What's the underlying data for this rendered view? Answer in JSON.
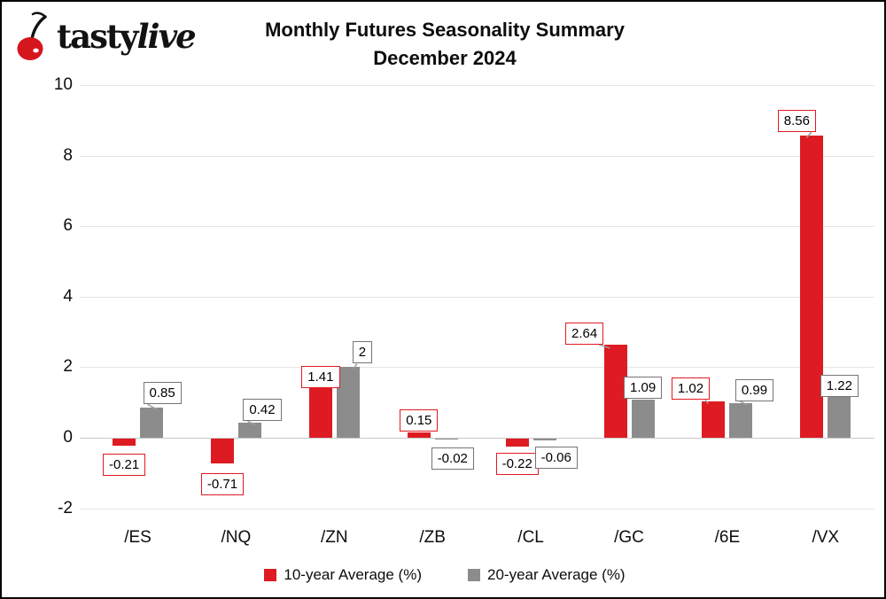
{
  "logo": {
    "tasty": "tasty",
    "live": "live"
  },
  "title": {
    "line1": "Monthly Futures Seasonality Summary",
    "line2": "December 2024"
  },
  "chart_data": {
    "type": "bar",
    "categories": [
      "/ES",
      "/NQ",
      "/ZN",
      "/ZB",
      "/CL",
      "/GC",
      "/6E",
      "/VX"
    ],
    "series": [
      {
        "name": "10-year Average (%)",
        "color": "#de1b22",
        "values": [
          -0.21,
          -0.71,
          1.41,
          0.15,
          -0.22,
          2.64,
          1.02,
          8.56
        ],
        "labels": [
          "-0.21",
          "-0.71",
          "1.41",
          "0.15",
          "-0.22",
          "2.64",
          "1.02",
          "8.56"
        ]
      },
      {
        "name": "20-year Average (%)",
        "color": "#8c8c8c",
        "values": [
          0.85,
          0.42,
          2,
          -0.02,
          -0.06,
          1.09,
          0.99,
          1.22
        ],
        "labels": [
          "0.85",
          "0.42",
          "2",
          "-0.02",
          "-0.06",
          "1.09",
          "0.99",
          "1.22"
        ]
      }
    ],
    "y_axis": {
      "ticks": [
        10,
        8,
        6,
        4,
        2,
        0,
        -2
      ],
      "min": -2,
      "max": 10
    },
    "grid": true,
    "legend_position": "bottom",
    "annotation_style": "boxed value labels with leader lines"
  },
  "colors": {
    "red": "#de1b22",
    "gray": "#8c8c8c",
    "gridline": "#e4e4e4",
    "zero_line": "#c8c8c8"
  }
}
